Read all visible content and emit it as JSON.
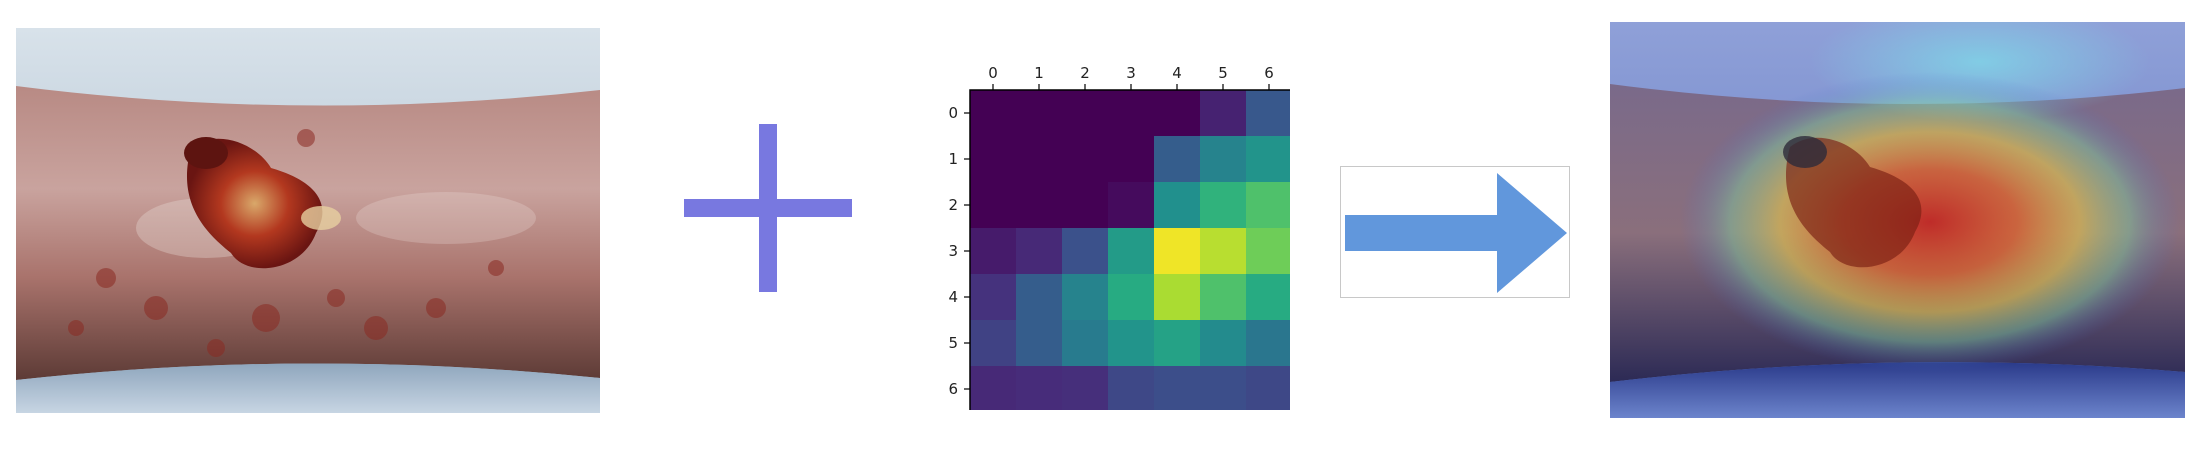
{
  "chart_data": {
    "type": "heatmap",
    "x_ticks": [
      "0",
      "1",
      "2",
      "3",
      "4",
      "5",
      "6"
    ],
    "y_ticks": [
      "0",
      "1",
      "2",
      "3",
      "4",
      "5",
      "6"
    ],
    "x_axis_position": "top",
    "colormap": "viridis",
    "values": [
      [
        0.0,
        0.0,
        0.0,
        0.0,
        0.0,
        0.1,
        0.28
      ],
      [
        0.0,
        0.0,
        0.0,
        0.0,
        0.3,
        0.45,
        0.52
      ],
      [
        0.0,
        0.0,
        0.0,
        0.03,
        0.5,
        0.65,
        0.72
      ],
      [
        0.08,
        0.12,
        0.25,
        0.55,
        0.98,
        0.9,
        0.78
      ],
      [
        0.15,
        0.3,
        0.45,
        0.62,
        0.88,
        0.72,
        0.62
      ],
      [
        0.2,
        0.3,
        0.42,
        0.52,
        0.58,
        0.48,
        0.4
      ],
      [
        0.12,
        0.13,
        0.14,
        0.22,
        0.24,
        0.24,
        0.22
      ]
    ]
  },
  "colors": {
    "plus": "#7878e0",
    "arrow": "#6197dc",
    "arrow_border": "#c8c8c8"
  },
  "icons": {
    "plus": "plus-icon",
    "arrow": "arrow-right-icon"
  }
}
